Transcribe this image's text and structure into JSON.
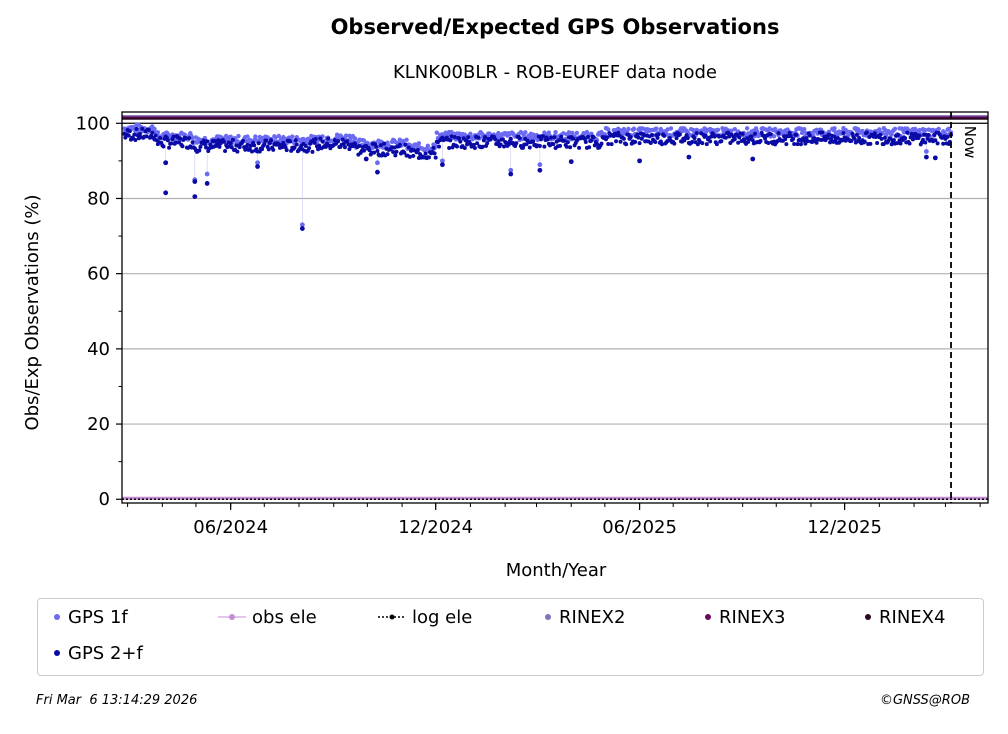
{
  "chart_data": {
    "type": "scatter",
    "title": "Observed/Expected GPS Observations",
    "subtitle": "KLNK00BLR - ROB-EUREF data node",
    "xlabel": "Month/Year",
    "ylabel": "Obs/Exp Observations (%)",
    "xlim": [
      "2024-02-25",
      "2026-04-08"
    ],
    "ylim": [
      -1,
      103
    ],
    "x_ticks": [
      {
        "date": "2024-06-01",
        "label": "06/2024"
      },
      {
        "date": "2024-12-01",
        "label": "12/2024"
      },
      {
        "date": "2025-06-01",
        "label": "06/2025"
      },
      {
        "date": "2025-12-01",
        "label": "12/2025"
      }
    ],
    "y_ticks": [
      0,
      20,
      40,
      60,
      80,
      100
    ],
    "grid": "horizontal",
    "now_date": "2026-03-06",
    "now_label": "Now",
    "series": [
      {
        "name": "GPS 1f",
        "color": "#6a6af2",
        "marker": "circle-small"
      },
      {
        "name": "obs ele",
        "color": "#c38bd4",
        "marker": "line-circle"
      },
      {
        "name": "log ele",
        "color": "#000000",
        "marker": "dashed-line-dot"
      },
      {
        "name": "RINEX2",
        "color": "#8073bd",
        "marker": "circle-small"
      },
      {
        "name": "RINEX3",
        "color": "#6a0a5e",
        "marker": "circle-small"
      },
      {
        "name": "RINEX4",
        "color": "#2a0a22",
        "marker": "circle-small"
      },
      {
        "name": "GPS 2+f",
        "color": "#0a0aa6",
        "marker": "circle-small"
      }
    ],
    "baseline_1f": [
      {
        "start": "2024-02-25",
        "end": "2024-03-26",
        "value": 98
      },
      {
        "start": "2024-03-27",
        "end": "2024-04-28",
        "value": 96
      },
      {
        "start": "2024-04-29",
        "end": "2024-08-15",
        "value": 95
      },
      {
        "start": "2024-08-16",
        "end": "2024-09-20",
        "value": 95.5
      },
      {
        "start": "2024-09-21",
        "end": "2024-11-05",
        "value": 94
      },
      {
        "start": "2024-11-06",
        "end": "2024-12-01",
        "value": 93
      },
      {
        "start": "2024-12-02",
        "end": "2025-04-30",
        "value": 96
      },
      {
        "start": "2025-05-01",
        "end": "2026-03-06",
        "value": 97
      }
    ],
    "outliers_2f": [
      {
        "date": "2024-04-04",
        "value": 81.5
      },
      {
        "date": "2024-04-04",
        "value": 89.5
      },
      {
        "date": "2024-04-30",
        "value": 84.5
      },
      {
        "date": "2024-04-30",
        "value": 80.5
      },
      {
        "date": "2024-05-11",
        "value": 84.0
      },
      {
        "date": "2024-06-25",
        "value": 88.5
      },
      {
        "date": "2024-08-04",
        "value": 72.0
      },
      {
        "date": "2024-09-30",
        "value": 90.5
      },
      {
        "date": "2024-10-10",
        "value": 87.0
      },
      {
        "date": "2024-12-07",
        "value": 89.0
      },
      {
        "date": "2025-02-06",
        "value": 86.5
      },
      {
        "date": "2025-03-04",
        "value": 87.5
      },
      {
        "date": "2025-04-01",
        "value": 89.8
      },
      {
        "date": "2025-06-01",
        "value": 90.0
      },
      {
        "date": "2025-07-15",
        "value": 91.0
      },
      {
        "date": "2025-09-10",
        "value": 90.5
      },
      {
        "date": "2026-02-12",
        "value": 91.0
      },
      {
        "date": "2026-02-20",
        "value": 90.8
      }
    ],
    "outliers_1f": [
      {
        "date": "2024-04-04",
        "value": 89.5
      },
      {
        "date": "2024-04-30",
        "value": 85.0
      },
      {
        "date": "2024-05-11",
        "value": 86.5
      },
      {
        "date": "2024-06-25",
        "value": 89.5
      },
      {
        "date": "2024-08-04",
        "value": 73.0
      },
      {
        "date": "2024-10-10",
        "value": 89.5
      },
      {
        "date": "2024-12-07",
        "value": 90.0
      },
      {
        "date": "2025-02-06",
        "value": 87.5
      },
      {
        "date": "2025-03-04",
        "value": 89.0
      },
      {
        "date": "2026-02-12",
        "value": 92.5
      }
    ],
    "rinex_bands": [
      {
        "name": "RINEX2",
        "value": 101.6,
        "color": "#8073bd"
      },
      {
        "name": "RINEX3",
        "value": 101.6,
        "color": "#6a0a5e"
      },
      {
        "name": "RINEX4",
        "value": 101.6,
        "color": "#2a0a22"
      }
    ],
    "elevation_cutoff": {
      "obs ele": 0,
      "log ele": 0
    }
  },
  "footer": {
    "timestamp": "Fri Mar  6 13:14:29 2026",
    "copyright": "©GNSS@ROB"
  }
}
